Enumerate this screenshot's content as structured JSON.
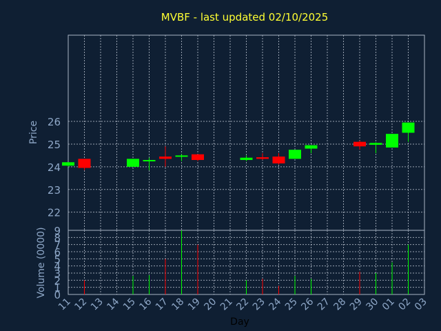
{
  "chart_data": {
    "type": "candlestick",
    "title": "MVBF - last updated 02/10/2025",
    "xlabel": "Day",
    "price_panel": {
      "ylabel": "Price",
      "ylim": [
        21.2,
        29.8
      ],
      "yticks": [
        22,
        23,
        24,
        25,
        26
      ]
    },
    "volume_panel": {
      "ylabel": "Volume (0000)",
      "ylim": [
        0,
        9
      ],
      "yticks": [
        0,
        1,
        2,
        3,
        4,
        5,
        6,
        7,
        8,
        9
      ]
    },
    "x_tick_labels": [
      "11",
      "12",
      "13",
      "14",
      "15",
      "16",
      "17",
      "18",
      "19",
      "20",
      "21",
      "22",
      "23",
      "24",
      "25",
      "26",
      "27",
      "28",
      "29",
      "30",
      "01",
      "02",
      "03"
    ],
    "colors": {
      "up": "#00ff00",
      "down": "#ff0000",
      "background": "#0f1f33",
      "title": "#ffff33",
      "text": "#8fa8c8"
    },
    "candles": [
      {
        "day": "11",
        "open": 24.05,
        "high": 24.2,
        "low": 24.0,
        "close": 24.2,
        "volume": 0.0
      },
      {
        "day": "12",
        "open": 24.35,
        "high": 24.35,
        "low": 23.85,
        "close": 23.95,
        "volume": 2.0
      },
      {
        "day": "15",
        "open": 24.0,
        "high": 24.35,
        "low": 24.0,
        "close": 24.35,
        "volume": 2.6
      },
      {
        "day": "16",
        "open": 24.3,
        "high": 24.4,
        "low": 23.85,
        "close": 24.3,
        "volume": 2.7
      },
      {
        "day": "17",
        "open": 24.45,
        "high": 24.9,
        "low": 24.0,
        "close": 24.35,
        "volume": 5.0
      },
      {
        "day": "18",
        "open": 24.45,
        "high": 24.55,
        "low": 24.25,
        "close": 24.5,
        "volume": 9.0
      },
      {
        "day": "19",
        "open": 24.55,
        "high": 24.55,
        "low": 24.25,
        "close": 24.3,
        "volume": 7.0
      },
      {
        "day": "22",
        "open": 24.3,
        "high": 24.5,
        "low": 24.25,
        "close": 24.4,
        "volume": 2.0
      },
      {
        "day": "23",
        "open": 24.42,
        "high": 24.6,
        "low": 24.3,
        "close": 24.35,
        "volume": 2.2
      },
      {
        "day": "24",
        "open": 24.45,
        "high": 24.6,
        "low": 24.1,
        "close": 24.15,
        "volume": 1.2
      },
      {
        "day": "25",
        "open": 24.35,
        "high": 24.75,
        "low": 24.35,
        "close": 24.75,
        "volume": 2.6
      },
      {
        "day": "26",
        "open": 24.8,
        "high": 24.95,
        "low": 24.6,
        "close": 24.95,
        "volume": 2.2
      },
      {
        "day": "29",
        "open": 25.1,
        "high": 25.15,
        "low": 24.75,
        "close": 24.9,
        "volume": 3.2
      },
      {
        "day": "30",
        "open": 24.97,
        "high": 25.08,
        "low": 24.6,
        "close": 25.05,
        "volume": 3.0
      },
      {
        "day": "01",
        "open": 24.85,
        "high": 25.45,
        "low": 24.85,
        "close": 25.45,
        "volume": 4.5
      },
      {
        "day": "02",
        "open": 25.5,
        "high": 25.95,
        "low": 25.1,
        "close": 25.95,
        "volume": 7.0
      }
    ]
  }
}
